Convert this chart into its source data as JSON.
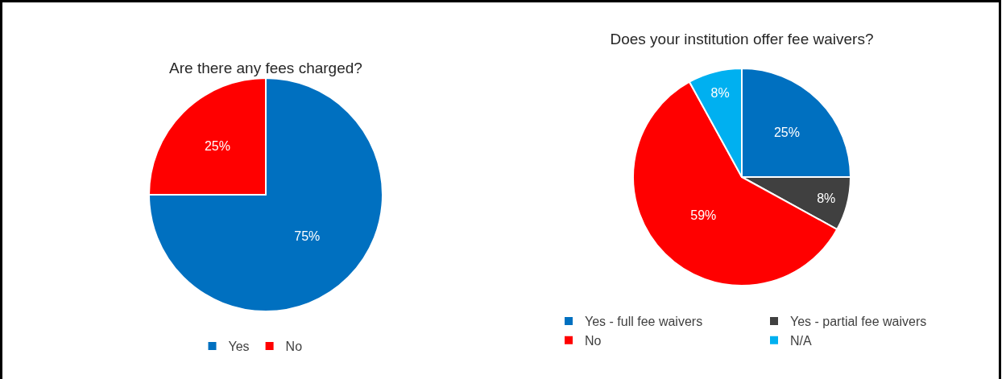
{
  "chart_data": [
    {
      "type": "pie",
      "title": "Are there any fees charged?",
      "categories": [
        "Yes",
        "No"
      ],
      "values": [
        75,
        25
      ],
      "colors": [
        "#0070c0",
        "#ff0000"
      ],
      "value_labels": [
        "75%",
        "25%"
      ],
      "legend": "bottom"
    },
    {
      "type": "pie",
      "title": "Does your institution offer fee waivers?",
      "categories": [
        "Yes - full fee waivers",
        "Yes - partial fee waivers",
        "No",
        "N/A"
      ],
      "values": [
        25,
        8,
        59,
        8
      ],
      "colors": [
        "#0070c0",
        "#404040",
        "#ff0000",
        "#00b0f0"
      ],
      "value_labels": [
        "25%",
        "8%",
        "59%",
        "8%"
      ],
      "legend": "bottom"
    }
  ]
}
